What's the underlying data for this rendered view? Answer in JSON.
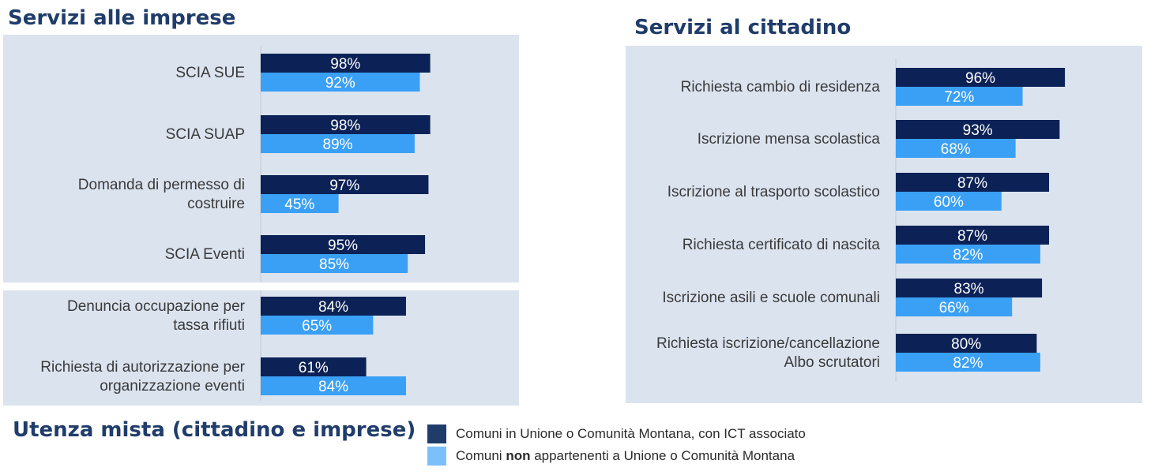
{
  "titles": {
    "left": "Servizi alle imprese",
    "right": "Servizi al cittadino",
    "bottom": "Utenza mista (cittadino e imprese)"
  },
  "legend": {
    "series1": "Comuni in Unione o Comunità Montana, con ICT associato",
    "series2_pre": "Comuni ",
    "series2_bold": "non",
    "series2_post": " appartenenti a Unione o Comunità Montana"
  },
  "colors": {
    "series1": "#0c2257",
    "series2": "#3aa0f5",
    "panel": "#dbe3ef",
    "title": "#1f3c6b"
  },
  "chart_data": [
    {
      "type": "bar",
      "orientation": "horizontal",
      "title": "Servizi alle imprese",
      "categories": [
        [
          "SCIA SUE"
        ],
        [
          "SCIA SUAP"
        ],
        [
          "Domanda di permesso di",
          "costruire"
        ],
        [
          "SCIA Eventi"
        ]
      ],
      "series": [
        {
          "name": "Comuni in Unione o Comunità Montana, con ICT associato",
          "values": [
            98,
            98,
            97,
            95
          ]
        },
        {
          "name": "Comuni non appartenenti a Unione o Comunità Montana",
          "values": [
            92,
            89,
            45,
            85
          ]
        }
      ],
      "labels": [
        [
          "98%",
          "92%"
        ],
        [
          "98%",
          "89%"
        ],
        [
          "97%",
          "45%"
        ],
        [
          "95%",
          "85%"
        ]
      ],
      "xlim": [
        0,
        100
      ]
    },
    {
      "type": "bar",
      "orientation": "horizontal",
      "title": "Utenza mista (cittadino e imprese)",
      "categories": [
        [
          "Denuncia occupazione per",
          "tassa rifiuti"
        ],
        [
          "Richiesta di autorizzazione per",
          "organizzazione eventi"
        ]
      ],
      "series": [
        {
          "name": "Comuni in Unione o Comunità Montana, con ICT associato",
          "values": [
            84,
            61
          ]
        },
        {
          "name": "Comuni non appartenenti a Unione o Comunità Montana",
          "values": [
            65,
            84
          ]
        }
      ],
      "labels": [
        [
          "84%",
          "65%"
        ],
        [
          "61%",
          "84%"
        ]
      ],
      "xlim": [
        0,
        100
      ]
    },
    {
      "type": "bar",
      "orientation": "horizontal",
      "title": "Servizi al cittadino",
      "categories": [
        [
          "Richiesta cambio di residenza"
        ],
        [
          "Iscrizione mensa scolastica"
        ],
        [
          "Iscrizione al trasporto scolastico"
        ],
        [
          "Richiesta certificato di nascita"
        ],
        [
          "Iscrizione asili e scuole comunali"
        ],
        [
          "Richiesta iscrizione/cancellazione",
          "Albo scrutatori"
        ]
      ],
      "series": [
        {
          "name": "Comuni in Unione o Comunità Montana, con ICT associato",
          "values": [
            96,
            93,
            87,
            87,
            83,
            80
          ]
        },
        {
          "name": "Comuni non appartenenti a Unione o Comunità Montana",
          "values": [
            72,
            68,
            60,
            82,
            66,
            82
          ]
        }
      ],
      "labels": [
        [
          "96%",
          "72%"
        ],
        [
          "93%",
          "68%"
        ],
        [
          "87%",
          "60%"
        ],
        [
          "87%",
          "82%"
        ],
        [
          "83%",
          "66%"
        ],
        [
          "80%",
          "82%"
        ]
      ],
      "xlim": [
        0,
        100
      ]
    }
  ]
}
